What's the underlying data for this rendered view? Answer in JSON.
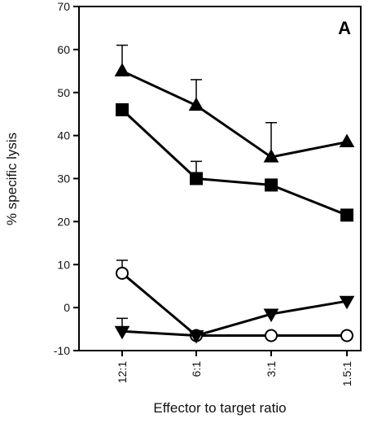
{
  "chart_data": {
    "type": "line",
    "panel_label": "A",
    "xlabel": "Effector to target ratio",
    "ylabel": "% specific lysis",
    "categories": [
      "12:1",
      "6:1",
      "3:1",
      "1.5:1"
    ],
    "ylim": [
      -10,
      70
    ],
    "yticks": [
      -10,
      0,
      10,
      20,
      30,
      40,
      50,
      60,
      70
    ],
    "ytick_labels": [
      "-10",
      "0",
      "10",
      "20",
      "30",
      "40",
      "50",
      "60",
      "70"
    ],
    "grid": false,
    "legend": "none",
    "series": [
      {
        "marker": "triangle-up",
        "filled": true,
        "values": [
          55,
          47,
          35,
          38.5
        ],
        "error": [
          6,
          6,
          8,
          null
        ]
      },
      {
        "marker": "square",
        "filled": true,
        "values": [
          46,
          30,
          28.5,
          21.5
        ],
        "error": [
          null,
          4,
          null,
          null
        ]
      },
      {
        "marker": "circle",
        "filled": false,
        "values": [
          8,
          -6.5,
          -6.5,
          -6.5
        ],
        "error": [
          3,
          null,
          null,
          null
        ]
      },
      {
        "marker": "triangle-down",
        "filled": true,
        "values": [
          -5.5,
          -6.5,
          -1.5,
          1.5
        ],
        "error": [
          3,
          null,
          null,
          null
        ]
      }
    ]
  }
}
